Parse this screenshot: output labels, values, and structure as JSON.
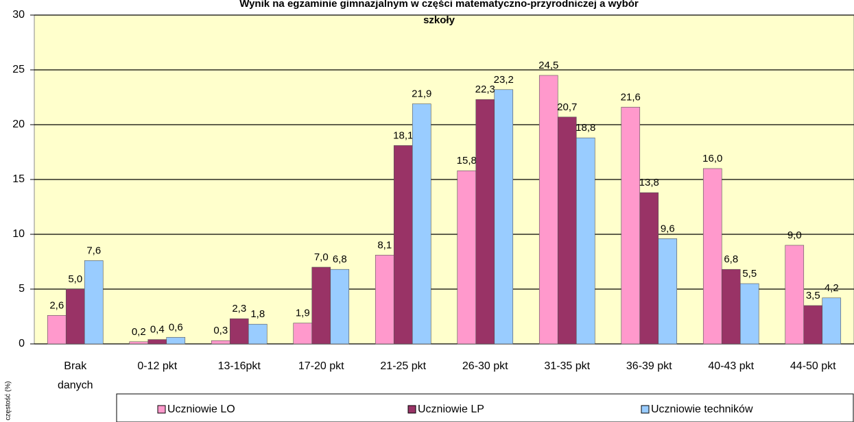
{
  "chart_data": {
    "type": "bar",
    "title": [
      "Wynik na egzaminie gimnazjalnym w części matematyczno-przyrodniczej a wybór",
      "szkoły"
    ],
    "y_label": "częstość (%)",
    "categories": [
      "Brak danych",
      "0-12 pkt",
      "13-16pkt",
      "17-20 pkt",
      "21-25 pkt",
      "26-30 pkt",
      "31-35 pkt",
      "36-39 pkt",
      "40-43 pkt",
      "44-50 pkt"
    ],
    "series": [
      {
        "name": "Uczniowie LO",
        "color": "#ff99cc",
        "values": [
          2.6,
          0.2,
          0.3,
          1.9,
          8.1,
          15.8,
          24.5,
          21.6,
          16.0,
          9.0
        ],
        "value_labels": [
          "2,6",
          "0,2",
          "0,3",
          "1,9",
          "8,1",
          "15,8",
          "24,5",
          "21,6",
          "16,0",
          "9,0"
        ]
      },
      {
        "name": "Uczniowie LP",
        "color": "#993366",
        "values": [
          5.0,
          0.4,
          2.3,
          7.0,
          18.1,
          22.3,
          20.7,
          13.8,
          6.8,
          3.5
        ],
        "value_labels": [
          "5,0",
          "0,4",
          "2,3",
          "7,0",
          "18,1",
          "22,3",
          "20,7",
          "13,8",
          "6,8",
          "3,5"
        ]
      },
      {
        "name": "Uczniowie techników",
        "color": "#99ccff",
        "values": [
          7.6,
          0.6,
          1.8,
          6.8,
          21.9,
          23.2,
          18.8,
          9.6,
          5.5,
          4.2
        ],
        "value_labels": [
          "7,6",
          "0,6",
          "1,8",
          "6,8",
          "21,9",
          "23,2",
          "18,8",
          "9,6",
          "5,5",
          "4,2"
        ]
      }
    ],
    "ylim": [
      0,
      30
    ],
    "yticks": [
      0,
      5,
      10,
      15,
      20,
      25,
      30
    ],
    "grid": true,
    "legend": "bottom"
  }
}
